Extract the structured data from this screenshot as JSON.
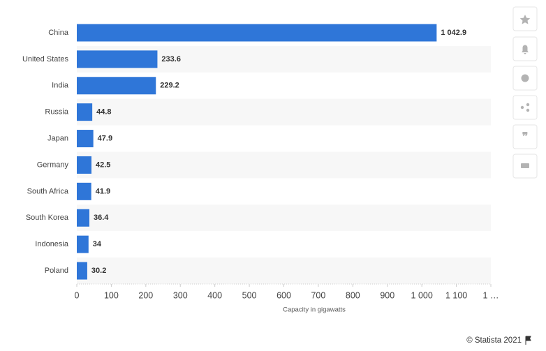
{
  "chart_data": {
    "type": "bar",
    "orientation": "horizontal",
    "categories": [
      "China",
      "United States",
      "India",
      "Russia",
      "Japan",
      "Germany",
      "South Africa",
      "South Korea",
      "Indonesia",
      "Poland"
    ],
    "values": [
      1042.9,
      233.6,
      229.2,
      44.8,
      47.9,
      42.5,
      41.9,
      36.4,
      34,
      30.2
    ],
    "value_labels": [
      "1 042.9",
      "233.6",
      "229.2",
      "44.8",
      "47.9",
      "42.5",
      "41.9",
      "36.4",
      "34",
      "30.2"
    ],
    "color": "#2f76d8",
    "xlabel": "Capacity in gigawatts",
    "xlim": [
      0,
      1200
    ],
    "xticks": [
      0,
      100,
      200,
      300,
      400,
      500,
      600,
      700,
      800,
      900,
      {
        "value": 1000,
        "label": "1 000"
      },
      {
        "value": 1100,
        "label": "1 100"
      },
      {
        "value": 1200,
        "label": "1 …"
      }
    ],
    "credit": "© Statista 2021"
  }
}
